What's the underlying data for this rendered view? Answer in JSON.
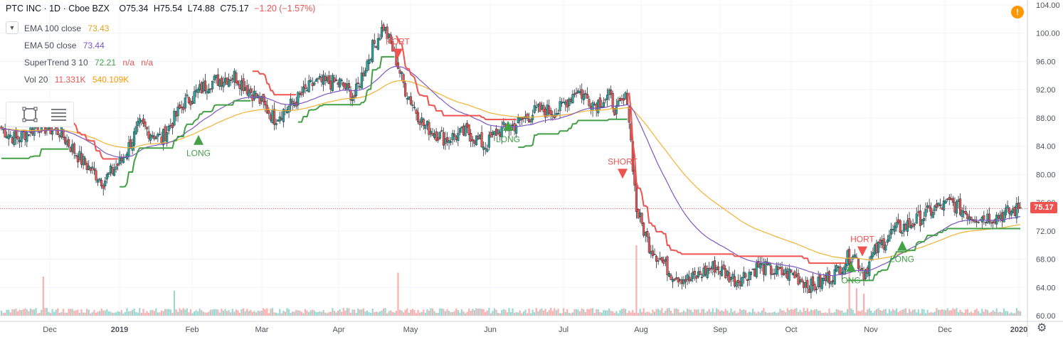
{
  "header": {
    "symbol": "PTC INC · 1D · Cboe BZX",
    "open": "O75.34",
    "high": "H75.54",
    "low": "L74.88",
    "close": "C75.17",
    "change": "−1.20 (−1.57%)"
  },
  "indicators": {
    "ema100": {
      "label": "EMA 100 close",
      "value": "73.43",
      "color": "#f2b233"
    },
    "ema50": {
      "label": "EMA 50 close",
      "value": "73.44",
      "color": "#7e57c2"
    },
    "supertrend": {
      "label": "SuperTrend 3 10",
      "value": "72.21",
      "na1": "n/a",
      "na2": "n/a",
      "color": "#43a047",
      "color_down": "#ef5350"
    },
    "vol": {
      "label": "Vol 20",
      "value1": "11.331K",
      "value2": "540.109K",
      "color": "#ef5350",
      "color2": "#ff9800"
    }
  },
  "price_tag": "75.17",
  "warning_icon": "!",
  "settings_icon": "gear-icon",
  "chart_data": {
    "type": "candlestick",
    "y_axis": {
      "min": 60,
      "max": 104,
      "ticks": [
        "104.00",
        "100.00",
        "96.00",
        "92.00",
        "88.00",
        "84.00",
        "80.00",
        "76.00",
        "72.00",
        "68.00",
        "64.00",
        "60.00"
      ]
    },
    "x_axis": {
      "labels": [
        "Dec",
        "2019",
        "Feb",
        "Mar",
        "Apr",
        "May",
        "Jun",
        "Jul",
        "Aug",
        "Sep",
        "Oct",
        "Nov",
        "Dec",
        "2020"
      ]
    },
    "last_price": 75.17,
    "signals": [
      {
        "type": "LONG",
        "label": "LONG",
        "price": 85.0
      },
      {
        "type": "SHORT",
        "label": "HORT",
        "price": 97.0
      },
      {
        "type": "LONG",
        "label": "LONG",
        "price": 87.0
      },
      {
        "type": "SHORT",
        "label": "SHORT",
        "price": 80.0
      },
      {
        "type": "LONG",
        "label": "ONG",
        "price": 67.0
      },
      {
        "type": "SHORT",
        "label": "HORT",
        "price": 69.0
      },
      {
        "type": "LONG",
        "label": "LONG",
        "price": 70.0
      }
    ],
    "anchors_close": [
      [
        0,
        86.5
      ],
      [
        8,
        85
      ],
      [
        20,
        87
      ],
      [
        32,
        86
      ],
      [
        44,
        82
      ],
      [
        56,
        79
      ],
      [
        66,
        82
      ],
      [
        76,
        87
      ],
      [
        88,
        85
      ],
      [
        100,
        90
      ],
      [
        114,
        93
      ],
      [
        128,
        94
      ],
      [
        140,
        91
      ],
      [
        150,
        88
      ],
      [
        160,
        90
      ],
      [
        172,
        93
      ],
      [
        186,
        93
      ],
      [
        194,
        91
      ],
      [
        198,
        94
      ],
      [
        204,
        98
      ],
      [
        210,
        101
      ],
      [
        216,
        97
      ],
      [
        222,
        92
      ],
      [
        232,
        87
      ],
      [
        244,
        85
      ],
      [
        256,
        86
      ],
      [
        266,
        84
      ],
      [
        272,
        86
      ],
      [
        282,
        87
      ],
      [
        294,
        89
      ],
      [
        306,
        89
      ],
      [
        316,
        92
      ],
      [
        326,
        90
      ],
      [
        334,
        91
      ],
      [
        338,
        89
      ],
      [
        344,
        91
      ],
      [
        349,
        75
      ],
      [
        356,
        70
      ],
      [
        368,
        66
      ],
      [
        378,
        65
      ],
      [
        392,
        67
      ],
      [
        404,
        65
      ],
      [
        416,
        67
      ],
      [
        428,
        66
      ],
      [
        434,
        66
      ],
      [
        446,
        64
      ],
      [
        458,
        66
      ],
      [
        468,
        69
      ],
      [
        474,
        66
      ],
      [
        480,
        69
      ],
      [
        490,
        72
      ],
      [
        500,
        73
      ],
      [
        512,
        75
      ],
      [
        522,
        76
      ],
      [
        534,
        74
      ],
      [
        546,
        74
      ],
      [
        560,
        75.17
      ]
    ],
    "volume_spikes": [
      [
        23,
        0.5
      ],
      [
        95,
        0.32
      ],
      [
        218,
        0.55
      ],
      [
        349,
        0.9
      ],
      [
        466,
        0.85
      ],
      [
        470,
        0.35
      ],
      [
        474,
        0.28
      ]
    ]
  }
}
